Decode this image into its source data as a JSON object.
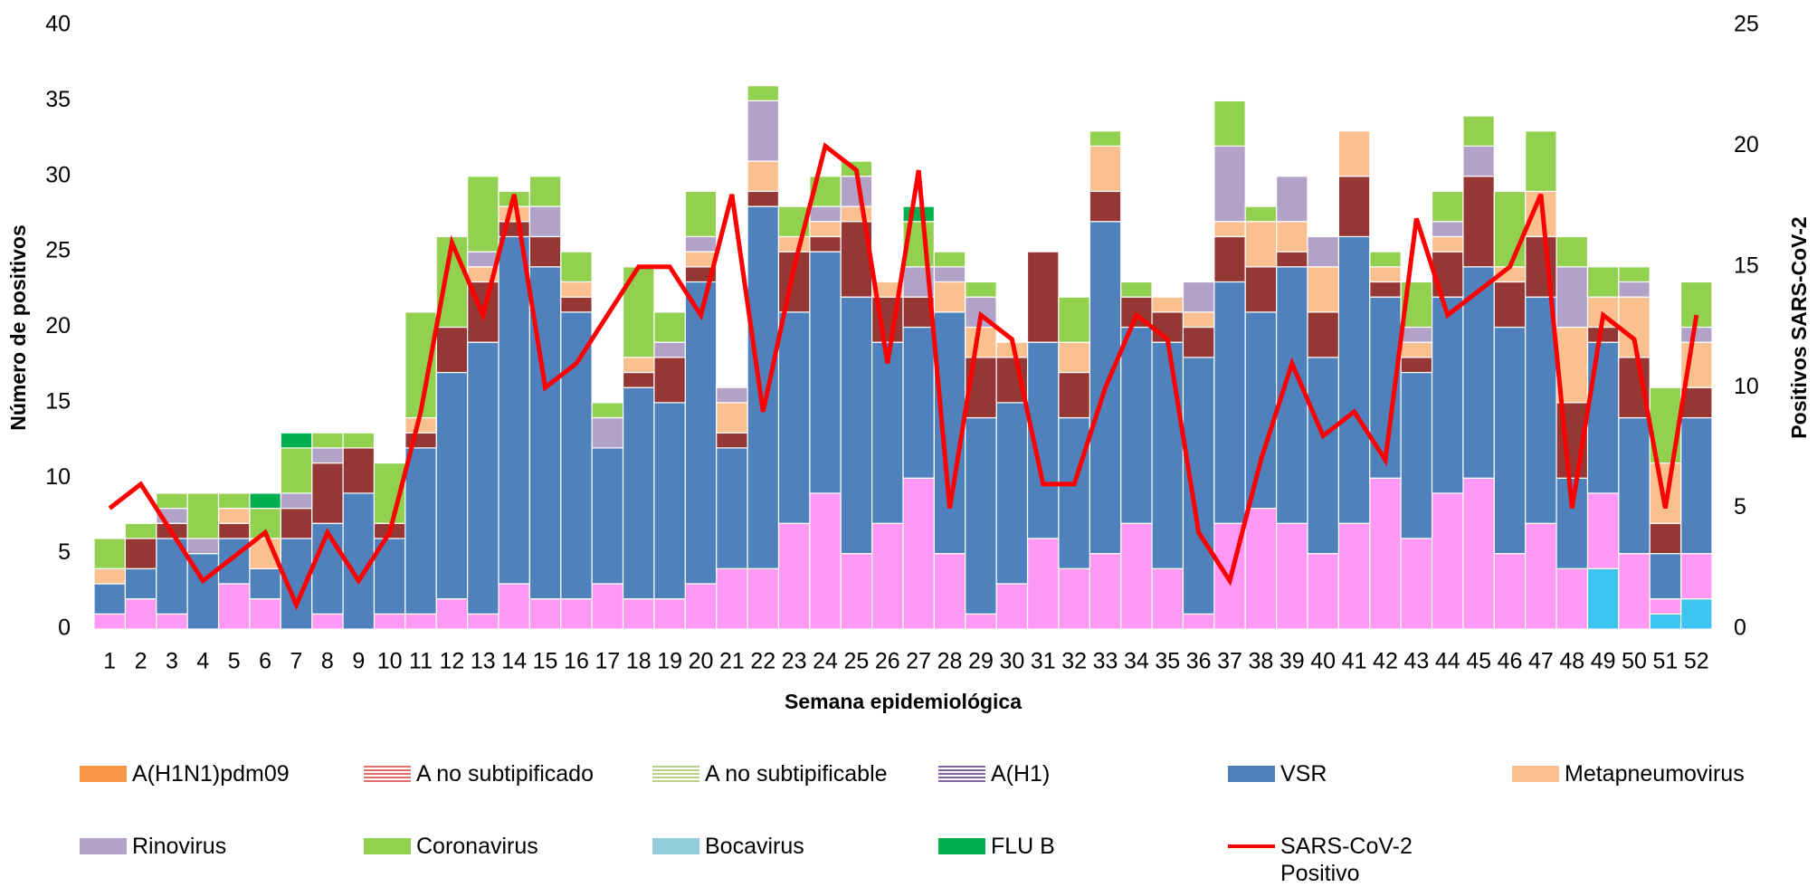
{
  "chart_data": {
    "type": "bar",
    "stacked": true,
    "x_label": "Semana epidemiológica",
    "y_label": "Número de positivos",
    "y2_label": "Positivos SARS-CoV-2",
    "categories": [
      "1",
      "2",
      "3",
      "4",
      "5",
      "6",
      "7",
      "8",
      "9",
      "10",
      "11",
      "12",
      "13",
      "14",
      "15",
      "16",
      "17",
      "18",
      "19",
      "20",
      "21",
      "22",
      "23",
      "24",
      "25",
      "26",
      "27",
      "28",
      "29",
      "30",
      "31",
      "32",
      "33",
      "34",
      "35",
      "36",
      "37",
      "38",
      "39",
      "40",
      "41",
      "42",
      "43",
      "44",
      "45",
      "46",
      "47",
      "48",
      "49",
      "50",
      "51",
      "52"
    ],
    "ylim": [
      0,
      40
    ],
    "yticks": [
      0,
      5,
      10,
      15,
      20,
      25,
      30,
      35,
      40
    ],
    "y2lim": [
      0,
      25
    ],
    "y2ticks": [
      0,
      5,
      10,
      15,
      20,
      25
    ],
    "series": [
      {
        "name": "Bocavirus",
        "color": "#3cc3ef",
        "legend_color": "#92cddc",
        "values": [
          0,
          0,
          0,
          0,
          0,
          0,
          0,
          0,
          0,
          0,
          0,
          0,
          0,
          0,
          0,
          0,
          0,
          0,
          0,
          0,
          0,
          0,
          0,
          0,
          0,
          0,
          0,
          0,
          0,
          0,
          0,
          0,
          0,
          0,
          0,
          0,
          0,
          0,
          0,
          0,
          0,
          0,
          0,
          0,
          0,
          0,
          0,
          0,
          4,
          0,
          1,
          2
        ]
      },
      {
        "color": "#ff99f5",
        "values": [
          1,
          2,
          1,
          0,
          3,
          2,
          0,
          1,
          0,
          1,
          1,
          2,
          1,
          3,
          2,
          2,
          3,
          2,
          2,
          3,
          4,
          4,
          7,
          9,
          5,
          7,
          10,
          5,
          1,
          3,
          6,
          4,
          5,
          7,
          4,
          1,
          7,
          8,
          7,
          5,
          7,
          10,
          6,
          9,
          10,
          5,
          7,
          4,
          5,
          5,
          1,
          3
        ]
      },
      {
        "name": "VSR",
        "color": "#4f81bd",
        "values": [
          2,
          2,
          5,
          5,
          3,
          2,
          6,
          6,
          9,
          5,
          11,
          15,
          18,
          23,
          22,
          19,
          9,
          14,
          13,
          20,
          8,
          24,
          14,
          16,
          17,
          12,
          10,
          16,
          13,
          12,
          13,
          10,
          22,
          13,
          15,
          17,
          16,
          13,
          17,
          13,
          19,
          12,
          11,
          13,
          14,
          15,
          15,
          6,
          10,
          9,
          3,
          9
        ]
      },
      {
        "color": "#953735",
        "values": [
          0,
          2,
          1,
          0,
          1,
          0,
          2,
          4,
          3,
          1,
          1,
          3,
          4,
          1,
          2,
          1,
          0,
          1,
          3,
          1,
          1,
          1,
          4,
          1,
          5,
          3,
          2,
          0,
          4,
          3,
          6,
          3,
          2,
          2,
          2,
          2,
          3,
          3,
          1,
          3,
          4,
          1,
          1,
          3,
          6,
          3,
          4,
          5,
          1,
          4,
          2,
          2
        ]
      },
      {
        "name": "Metapneumovirus",
        "color": "#fac090",
        "values": [
          1,
          0,
          0,
          0,
          1,
          2,
          0,
          0,
          0,
          0,
          1,
          0,
          1,
          1,
          0,
          1,
          0,
          1,
          0,
          1,
          2,
          2,
          1,
          1,
          1,
          1,
          0,
          2,
          2,
          1,
          0,
          2,
          3,
          0,
          1,
          1,
          1,
          3,
          2,
          3,
          3,
          1,
          1,
          1,
          0,
          1,
          3,
          5,
          2,
          4,
          4,
          3
        ]
      },
      {
        "name": "Rinovirus",
        "color": "#b3a2c7",
        "values": [
          0,
          0,
          1,
          1,
          0,
          0,
          1,
          1,
          0,
          0,
          0,
          0,
          1,
          0,
          2,
          0,
          2,
          0,
          1,
          1,
          1,
          4,
          0,
          1,
          2,
          0,
          2,
          1,
          2,
          0,
          0,
          0,
          0,
          0,
          0,
          2,
          5,
          0,
          3,
          2,
          0,
          0,
          1,
          1,
          2,
          0,
          0,
          4,
          0,
          1,
          0,
          1
        ]
      },
      {
        "name": "Coronavirus",
        "color": "#92d050",
        "values": [
          2,
          1,
          1,
          3,
          1,
          2,
          3,
          1,
          1,
          4,
          7,
          6,
          5,
          1,
          2,
          2,
          1,
          6,
          2,
          3,
          0,
          1,
          2,
          2,
          1,
          0,
          3,
          1,
          1,
          0,
          0,
          3,
          1,
          1,
          0,
          0,
          3,
          1,
          0,
          0,
          0,
          1,
          3,
          2,
          2,
          5,
          4,
          2,
          2,
          1,
          5,
          3
        ]
      },
      {
        "name": "FLU B",
        "color": "#00b050",
        "values": [
          0,
          0,
          0,
          0,
          0,
          1,
          1,
          0,
          0,
          0,
          0,
          0,
          0,
          0,
          0,
          0,
          0,
          0,
          0,
          0,
          0,
          0,
          0,
          0,
          0,
          0,
          1,
          0,
          0,
          0,
          0,
          0,
          0,
          0,
          0,
          0,
          0,
          0,
          0,
          0,
          0,
          0,
          0,
          0,
          0,
          0,
          0,
          0,
          0,
          0,
          0,
          0
        ]
      },
      {
        "name": "A(H1N1)pdm09",
        "color": "#f79646",
        "values": [
          0,
          0,
          0,
          0,
          0,
          0,
          0,
          0,
          0,
          0,
          0,
          0,
          0,
          0,
          0,
          0,
          0,
          0,
          0,
          0,
          0,
          0,
          0,
          0,
          0,
          0,
          0,
          0,
          0,
          0,
          0,
          0,
          0,
          0,
          0,
          0,
          0,
          0,
          0,
          0,
          0,
          0,
          0,
          0,
          0,
          0,
          0,
          0,
          0,
          0,
          0,
          0
        ]
      },
      {
        "name": "A no subtipificado",
        "color": "#e0706c",
        "hatch": true,
        "values": [
          0,
          0,
          0,
          0,
          0,
          0,
          0,
          0,
          0,
          0,
          0,
          0,
          0,
          0,
          0,
          0,
          0,
          0,
          0,
          0,
          0,
          0,
          0,
          0,
          0,
          0,
          0,
          0,
          0,
          0,
          0,
          0,
          0,
          0,
          0,
          0,
          0,
          0,
          0,
          0,
          0,
          0,
          0,
          0,
          0,
          0,
          0,
          0,
          0,
          0,
          0,
          0
        ]
      },
      {
        "name": "A no subtipificable",
        "color": "#b9cf8c",
        "hatch": true,
        "values": [
          0,
          0,
          0,
          0,
          0,
          0,
          0,
          0,
          0,
          0,
          0,
          0,
          0,
          0,
          0,
          0,
          0,
          0,
          0,
          0,
          0,
          0,
          0,
          0,
          0,
          0,
          0,
          0,
          0,
          0,
          0,
          0,
          0,
          0,
          0,
          0,
          0,
          0,
          0,
          0,
          0,
          0,
          0,
          0,
          0,
          0,
          0,
          0,
          0,
          0,
          0,
          0
        ]
      },
      {
        "name": "A(H1)",
        "color": "#8064a2",
        "hatch": true,
        "values": [
          0,
          0,
          0,
          0,
          0,
          0,
          0,
          0,
          0,
          0,
          0,
          0,
          0,
          0,
          0,
          0,
          0,
          0,
          0,
          0,
          0,
          0,
          0,
          0,
          0,
          0,
          0,
          0,
          0,
          0,
          0,
          0,
          0,
          0,
          0,
          0,
          0,
          0,
          0,
          0,
          0,
          0,
          0,
          0,
          0,
          0,
          0,
          0,
          0,
          0,
          0,
          0
        ]
      },
      {
        "name": "SARS-CoV-2 Positivo",
        "type": "line",
        "axis": "y2",
        "color": "#ff0000",
        "values": [
          5,
          6,
          4,
          2,
          3,
          4,
          1,
          4,
          2,
          4,
          9,
          16,
          13,
          18,
          10,
          11,
          13,
          15,
          15,
          13,
          18,
          9,
          15,
          20,
          19,
          11,
          19,
          5,
          13,
          12,
          6,
          6,
          10,
          13,
          12,
          4,
          2,
          7,
          11,
          8,
          9,
          7,
          17,
          13,
          14,
          15,
          18,
          5,
          13,
          12,
          5,
          13
        ]
      }
    ]
  }
}
